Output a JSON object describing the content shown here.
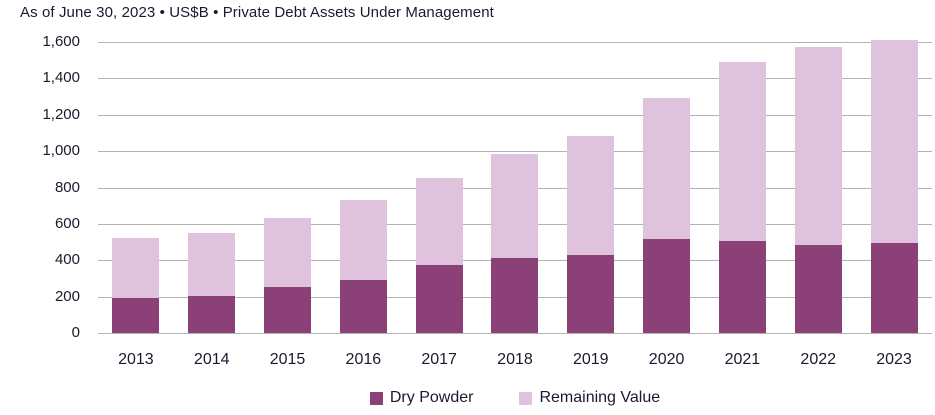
{
  "header": {
    "title": "As of June 30, 2023 • US$B • Private Debt Assets Under Management"
  },
  "colors": {
    "dry_powder": "#8B4077",
    "remaining_value": "#DFC3DC",
    "gridline": "#B3B3B3",
    "text": "#1A1A2E"
  },
  "legend": {
    "items": [
      {
        "label": "Dry Powder",
        "color": "#8B4077"
      },
      {
        "label": "Remaining Value",
        "color": "#DFC3DC"
      }
    ]
  },
  "chart_data": {
    "type": "bar",
    "stacked": true,
    "title": "As of June 30, 2023 • US$B • Private Debt Assets Under Management",
    "units": "US$B",
    "categories": [
      "2013",
      "2014",
      "2015",
      "2016",
      "2017",
      "2018",
      "2019",
      "2020",
      "2021",
      "2022",
      "2023"
    ],
    "series": [
      {
        "name": "Dry Powder",
        "color": "#8B4077",
        "values": [
          190,
          205,
          252,
          290,
          372,
          410,
          430,
          517,
          505,
          484,
          497
        ]
      },
      {
        "name": "Remaining Value",
        "color": "#DFC3DC",
        "values": [
          330,
          345,
          383,
          440,
          483,
          573,
          655,
          778,
          985,
          1090,
          1112
        ]
      }
    ],
    "totals": [
      520,
      550,
      635,
      730,
      855,
      983,
      1085,
      1295,
      1490,
      1574,
      1609
    ],
    "xlabel": "",
    "ylabel": "",
    "ylim": [
      0,
      1600
    ],
    "ytick_step": 200,
    "ytick_labels": [
      "0",
      "200",
      "400",
      "600",
      "800",
      "1,000",
      "1,200",
      "1,400",
      "1,600"
    ],
    "grid": true,
    "legend_position": "bottom"
  }
}
